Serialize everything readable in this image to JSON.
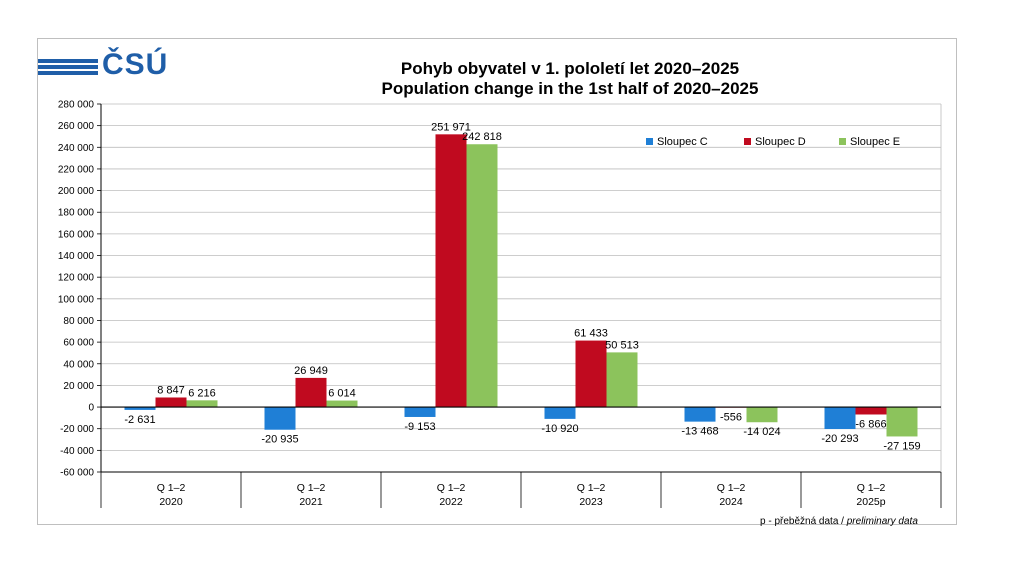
{
  "logo": {
    "text": "ČSÚ"
  },
  "title_cz": "Pohyb obyvatel v 1. pololetí let 2020–2025",
  "title_en": "Population change in the 1st half of 2020–2025",
  "note": {
    "main": "p - přeběžná data / ",
    "italic": "preliminary data"
  },
  "colors": {
    "C": "#1f7fd6",
    "D": "#c00a1f",
    "E": "#8cc35c"
  },
  "chart_data": {
    "type": "bar",
    "title": "Pohyb obyvatel v 1. pololetí let 2020–2025 / Population change in the 1st half of 2020–2025",
    "categories": [
      {
        "q": "Q 1–2",
        "year": "2020"
      },
      {
        "q": "Q 1–2",
        "year": "2021"
      },
      {
        "q": "Q 1–2",
        "year": "2022"
      },
      {
        "q": "Q 1–2",
        "year": "2023"
      },
      {
        "q": "Q 1–2",
        "year": "2024"
      },
      {
        "q": "Q 1–2",
        "year": "2025p"
      }
    ],
    "series": [
      {
        "name": "Sloupec C",
        "values": [
          -2631,
          -20935,
          -9153,
          -10920,
          -13468,
          -20293
        ],
        "labels": [
          "-2 631",
          "-20 935",
          "-9 153",
          "-10 920",
          "-13 468",
          "-20 293"
        ]
      },
      {
        "name": "Sloupec D",
        "values": [
          8847,
          26949,
          251971,
          61433,
          -556,
          -6866
        ],
        "labels": [
          "8 847",
          "26 949",
          "251 971",
          "61 433",
          "-556",
          "-6 866"
        ]
      },
      {
        "name": "Sloupec E",
        "values": [
          6216,
          6014,
          242818,
          50513,
          -14024,
          -27159
        ],
        "labels": [
          "6 216",
          "6 014",
          "242 818",
          "50 513",
          "-14 024",
          "-27 159"
        ]
      }
    ],
    "ylim": [
      -60000,
      280000
    ],
    "yticks": [
      {
        "v": 280000,
        "label": "280 000"
      },
      {
        "v": 260000,
        "label": "260 000"
      },
      {
        "v": 240000,
        "label": "240 000"
      },
      {
        "v": 220000,
        "label": "220 000"
      },
      {
        "v": 200000,
        "label": "200 000"
      },
      {
        "v": 180000,
        "label": "180 000"
      },
      {
        "v": 160000,
        "label": "160 000"
      },
      {
        "v": 140000,
        "label": "140 000"
      },
      {
        "v": 120000,
        "label": "120 000"
      },
      {
        "v": 100000,
        "label": "100 000"
      },
      {
        "v": 80000,
        "label": "80 000"
      },
      {
        "v": 60000,
        "label": "60 000"
      },
      {
        "v": 40000,
        "label": "40 000"
      },
      {
        "v": 20000,
        "label": "20 000"
      },
      {
        "v": 0,
        "label": "0"
      },
      {
        "v": -20000,
        "label": "-20 000"
      },
      {
        "v": -40000,
        "label": "-40 000"
      },
      {
        "v": -60000,
        "label": "-60 000"
      }
    ],
    "grid": true,
    "legend": "top-right"
  }
}
